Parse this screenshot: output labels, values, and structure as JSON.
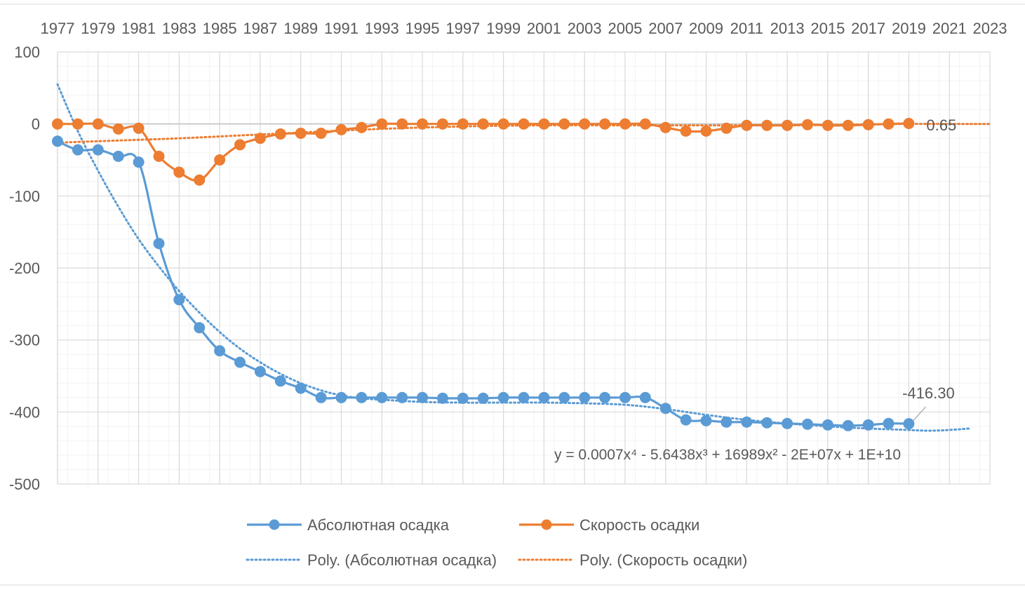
{
  "chart_data": {
    "type": "line",
    "title": "",
    "xlabel": "",
    "ylabel": "",
    "xlim": [
      1977,
      2023
    ],
    "ylim": [
      -500,
      100
    ],
    "x_ticks": [
      1977,
      1979,
      1981,
      1983,
      1985,
      1987,
      1989,
      1991,
      1993,
      1995,
      1997,
      1999,
      2001,
      2003,
      2005,
      2007,
      2009,
      2011,
      2013,
      2015,
      2017,
      2019,
      2021,
      2023
    ],
    "y_ticks": [
      100,
      0,
      -100,
      -200,
      -300,
      -400,
      -500
    ],
    "x_axis_position": "top",
    "grid": true,
    "legend_position": "bottom",
    "series": [
      {
        "name": "Абсолютная осадка",
        "color": "#5B9BD5",
        "x": [
          1977,
          1978,
          1979,
          1980,
          1981,
          1982,
          1983,
          1984,
          1985,
          1986,
          1987,
          1988,
          1989,
          1990,
          1991,
          1992,
          1993,
          1994,
          1995,
          1996,
          1997,
          1998,
          1999,
          2000,
          2001,
          2002,
          2003,
          2004,
          2005,
          2006,
          2007,
          2008,
          2009,
          2010,
          2011,
          2012,
          2013,
          2014,
          2015,
          2016,
          2017,
          2018,
          2019
        ],
        "values": [
          -24,
          -36,
          -36,
          -45,
          -53,
          -166,
          -244,
          -283,
          -315,
          -331,
          -344,
          -357,
          -367,
          -380,
          -380,
          -380,
          -380,
          -380,
          -380,
          -381,
          -381,
          -381,
          -380,
          -380,
          -380,
          -380,
          -380,
          -380,
          -380,
          -380,
          -395,
          -411,
          -412,
          -414,
          -414,
          -415,
          -416,
          -417,
          -418,
          -419,
          -418,
          -416,
          -416.3
        ]
      },
      {
        "name": "Скорость осадки",
        "color": "#ED7D31",
        "x": [
          1977,
          1978,
          1979,
          1980,
          1981,
          1982,
          1983,
          1984,
          1985,
          1986,
          1987,
          1988,
          1989,
          1990,
          1991,
          1992,
          1993,
          1994,
          1995,
          1996,
          1997,
          1998,
          1999,
          2000,
          2001,
          2002,
          2003,
          2004,
          2005,
          2006,
          2007,
          2008,
          2009,
          2010,
          2011,
          2012,
          2013,
          2014,
          2015,
          2016,
          2017,
          2018,
          2019
        ],
        "values": [
          0,
          0,
          0,
          -7,
          -6,
          -45,
          -67,
          -78,
          -50,
          -29,
          -20,
          -14,
          -13,
          -13,
          -8,
          -5,
          0,
          0,
          0,
          0,
          0,
          0,
          0,
          0,
          0,
          0,
          0,
          0,
          0,
          0,
          -5,
          -10,
          -10,
          -6,
          -2,
          -2,
          -2,
          -1,
          -2,
          -2,
          -1,
          0,
          0.65
        ]
      }
    ],
    "trendlines": [
      {
        "name": "Poly. (Абсолютная осадка)",
        "color": "#5B9BD5",
        "style": "dotted",
        "x": [
          1977,
          1978,
          1979,
          1980,
          1981,
          1982,
          1983,
          1984,
          1985,
          1986,
          1987,
          1988,
          1989,
          1990,
          1991,
          1992,
          1993,
          1995,
          1997,
          1999,
          2001,
          2003,
          2005,
          2007,
          2009,
          2011,
          2013,
          2015,
          2017,
          2019,
          2020,
          2021,
          2022
        ],
        "values": [
          55,
          -10,
          -65,
          -115,
          -160,
          -198,
          -232,
          -262,
          -289,
          -312,
          -331,
          -347,
          -360,
          -370,
          -377,
          -381,
          -383,
          -386,
          -387,
          -387,
          -387,
          -388,
          -390,
          -396,
          -404,
          -411,
          -416,
          -420,
          -423,
          -425,
          -426,
          -425,
          -423
        ]
      },
      {
        "name": "Poly. (Скорость осадки)",
        "color": "#ED7D31",
        "style": "dotted",
        "x": [
          1977,
          1980,
          1983,
          1986,
          1989,
          1992,
          1995,
          1998,
          2001,
          2004,
          2007,
          2010,
          2013,
          2016,
          2019,
          2022,
          2023
        ],
        "values": [
          -26,
          -23,
          -20,
          -16,
          -12,
          -8,
          -5,
          -3,
          -2,
          -2,
          -2,
          -2,
          -2,
          -1,
          0,
          0,
          0
        ]
      }
    ],
    "data_labels": [
      {
        "series": "Абсолютная осадка",
        "x": 2019,
        "text": "-416.30"
      },
      {
        "series": "Скорость осадки",
        "x": 2019,
        "text": "0.65"
      }
    ],
    "equation": "y = 0.0007x⁴ - 5.6438x³ + 16989x² - 2E+07x + 1E+10"
  }
}
